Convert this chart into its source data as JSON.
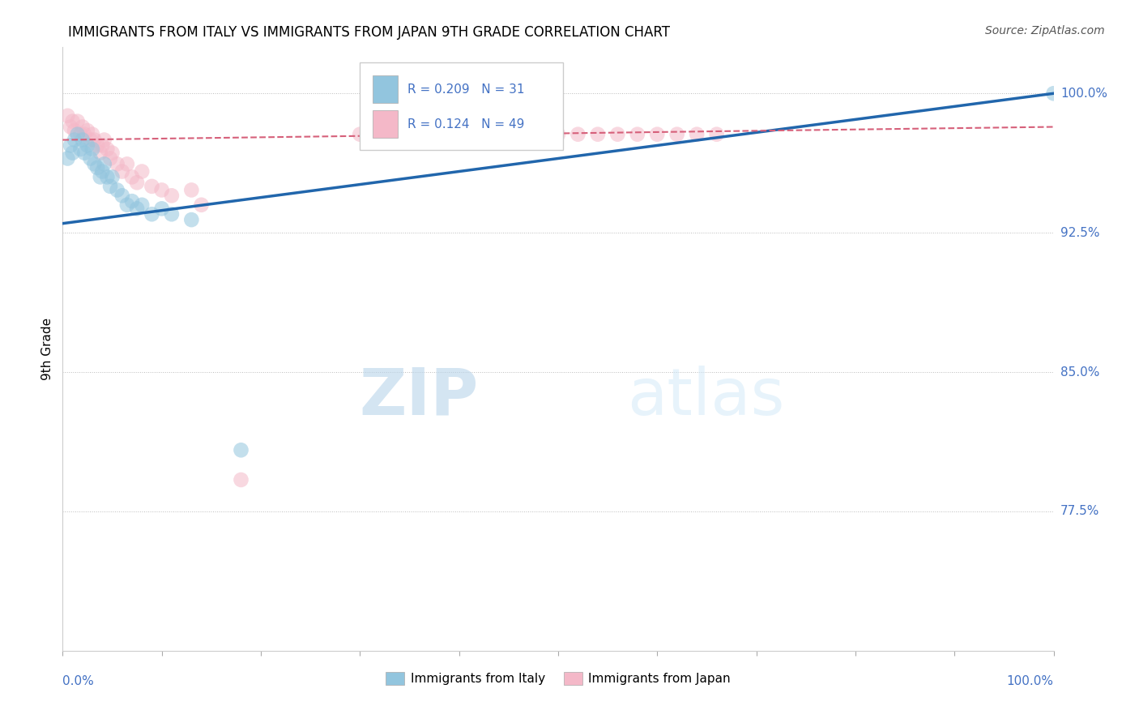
{
  "title": "IMMIGRANTS FROM ITALY VS IMMIGRANTS FROM JAPAN 9TH GRADE CORRELATION CHART",
  "source": "Source: ZipAtlas.com",
  "ylabel": "9th Grade",
  "watermark_zip": "ZIP",
  "watermark_atlas": "atlas",
  "xlim": [
    0.0,
    1.0
  ],
  "ylim": [
    0.7,
    1.025
  ],
  "yticks": [
    0.775,
    0.85,
    0.925,
    1.0
  ],
  "ytick_labels": [
    "77.5%",
    "85.0%",
    "92.5%",
    "100.0%"
  ],
  "legend_italy_R": "0.209",
  "legend_italy_N": "31",
  "legend_japan_R": "0.124",
  "legend_japan_N": "49",
  "color_italy": "#92c5de",
  "color_japan": "#f4b8c8",
  "line_italy": "#2166ac",
  "line_japan": "#d6607a",
  "italy_scatter": [
    [
      0.005,
      0.965
    ],
    [
      0.008,
      0.972
    ],
    [
      0.01,
      0.968
    ],
    [
      0.012,
      0.975
    ],
    [
      0.015,
      0.978
    ],
    [
      0.018,
      0.97
    ],
    [
      0.02,
      0.975
    ],
    [
      0.022,
      0.968
    ],
    [
      0.025,
      0.972
    ],
    [
      0.028,
      0.965
    ],
    [
      0.03,
      0.97
    ],
    [
      0.032,
      0.962
    ],
    [
      0.035,
      0.96
    ],
    [
      0.038,
      0.955
    ],
    [
      0.04,
      0.958
    ],
    [
      0.042,
      0.962
    ],
    [
      0.045,
      0.955
    ],
    [
      0.048,
      0.95
    ],
    [
      0.05,
      0.955
    ],
    [
      0.055,
      0.948
    ],
    [
      0.06,
      0.945
    ],
    [
      0.065,
      0.94
    ],
    [
      0.07,
      0.942
    ],
    [
      0.075,
      0.938
    ],
    [
      0.08,
      0.94
    ],
    [
      0.09,
      0.935
    ],
    [
      0.1,
      0.938
    ],
    [
      0.11,
      0.935
    ],
    [
      0.13,
      0.932
    ],
    [
      0.18,
      0.808
    ],
    [
      1.0,
      1.0
    ]
  ],
  "japan_scatter": [
    [
      0.005,
      0.988
    ],
    [
      0.008,
      0.982
    ],
    [
      0.01,
      0.985
    ],
    [
      0.012,
      0.98
    ],
    [
      0.015,
      0.985
    ],
    [
      0.018,
      0.978
    ],
    [
      0.02,
      0.982
    ],
    [
      0.022,
      0.978
    ],
    [
      0.025,
      0.98
    ],
    [
      0.028,
      0.975
    ],
    [
      0.03,
      0.978
    ],
    [
      0.032,
      0.975
    ],
    [
      0.035,
      0.972
    ],
    [
      0.038,
      0.968
    ],
    [
      0.04,
      0.972
    ],
    [
      0.042,
      0.975
    ],
    [
      0.045,
      0.97
    ],
    [
      0.048,
      0.965
    ],
    [
      0.05,
      0.968
    ],
    [
      0.055,
      0.962
    ],
    [
      0.06,
      0.958
    ],
    [
      0.065,
      0.962
    ],
    [
      0.07,
      0.955
    ],
    [
      0.075,
      0.952
    ],
    [
      0.08,
      0.958
    ],
    [
      0.09,
      0.95
    ],
    [
      0.1,
      0.948
    ],
    [
      0.11,
      0.945
    ],
    [
      0.13,
      0.948
    ],
    [
      0.14,
      0.94
    ],
    [
      0.18,
      0.792
    ],
    [
      0.3,
      0.978
    ],
    [
      0.32,
      0.978
    ],
    [
      0.34,
      0.978
    ],
    [
      0.37,
      0.978
    ],
    [
      0.39,
      0.978
    ],
    [
      0.42,
      0.978
    ],
    [
      0.44,
      0.978
    ],
    [
      0.46,
      0.978
    ],
    [
      0.48,
      0.978
    ],
    [
      0.5,
      0.978
    ],
    [
      0.52,
      0.978
    ],
    [
      0.54,
      0.978
    ],
    [
      0.56,
      0.978
    ],
    [
      0.58,
      0.978
    ],
    [
      0.6,
      0.978
    ],
    [
      0.62,
      0.978
    ],
    [
      0.64,
      0.978
    ],
    [
      0.66,
      0.978
    ]
  ],
  "italy_trendline": [
    [
      0.0,
      0.93
    ],
    [
      1.0,
      1.0
    ]
  ],
  "japan_trendline": [
    [
      0.0,
      0.975
    ],
    [
      1.0,
      0.982
    ]
  ]
}
